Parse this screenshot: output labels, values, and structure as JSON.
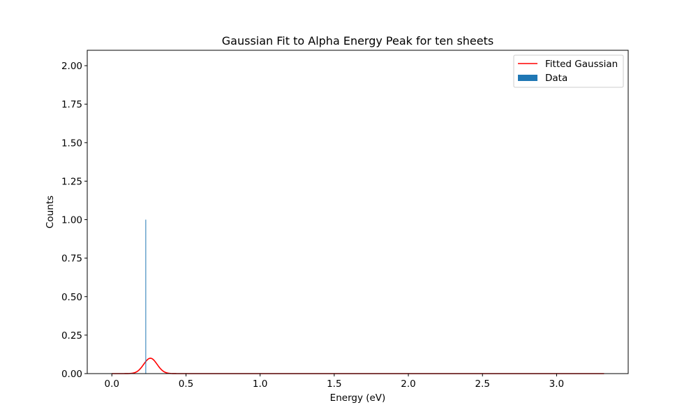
{
  "chart_data": {
    "type": "bar",
    "title": "Gaussian Fit to Alpha Energy Peak for ten sheets",
    "xlabel": "Energy (eV)",
    "ylabel": "Counts",
    "xlim": [
      -0.166,
      3.483
    ],
    "ylim": [
      0,
      2.1
    ],
    "xticks": [
      0.0,
      0.5,
      1.0,
      1.5,
      2.0,
      2.5,
      3.0
    ],
    "xtick_labels": [
      "0.0",
      "0.5",
      "1.0",
      "1.5",
      "2.0",
      "2.5",
      "3.0"
    ],
    "yticks": [
      0.0,
      0.25,
      0.5,
      0.75,
      1.0,
      1.25,
      1.5,
      1.75,
      2.0
    ],
    "ytick_labels": [
      "0.00",
      "0.25",
      "0.50",
      "0.75",
      "1.00",
      "1.25",
      "1.50",
      "1.75",
      "2.00"
    ],
    "grid": false,
    "legend_position": "top-right",
    "series": [
      {
        "name": "Fitted Gaussian",
        "kind": "line",
        "color": "#ff0000",
        "function": "gaussian",
        "amplitude": 0.1,
        "mean": 0.26,
        "sigma": 0.045,
        "x_range": [
          0.0,
          3.32
        ]
      },
      {
        "name": "Data",
        "kind": "bar",
        "color": "#1f77b4",
        "bars": [
          {
            "x": 0.228,
            "width": 0.003,
            "value": 1.0
          }
        ]
      }
    ]
  }
}
